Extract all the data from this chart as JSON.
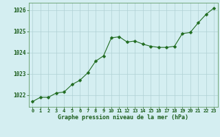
{
  "x": [
    0,
    1,
    2,
    3,
    4,
    5,
    6,
    7,
    8,
    9,
    10,
    11,
    12,
    13,
    14,
    15,
    16,
    17,
    18,
    19,
    20,
    21,
    22,
    23
  ],
  "y": [
    1021.7,
    1021.9,
    1021.9,
    1022.1,
    1022.15,
    1022.5,
    1022.7,
    1023.05,
    1023.6,
    1023.85,
    1024.7,
    1024.75,
    1024.5,
    1024.55,
    1024.4,
    1024.3,
    1024.25,
    1024.25,
    1024.3,
    1024.9,
    1024.95,
    1025.4,
    1025.8,
    1026.1
  ],
  "line_color": "#1f6b1f",
  "marker": "D",
  "marker_size": 2.5,
  "bg_color": "#d4eef1",
  "grid_color": "#b0d0d4",
  "xlabel": "Graphe pression niveau de la mer (hPa)",
  "xlabel_color": "#1a5c1a",
  "tick_color": "#1a5c1a",
  "axis_color": "#4a8a4a",
  "ylim": [
    1021.45,
    1026.35
  ],
  "yticks": [
    1022,
    1023,
    1024,
    1025,
    1026
  ],
  "xticks": [
    0,
    1,
    2,
    3,
    4,
    5,
    6,
    7,
    8,
    9,
    10,
    11,
    12,
    13,
    14,
    15,
    16,
    17,
    18,
    19,
    20,
    21,
    22,
    23
  ]
}
